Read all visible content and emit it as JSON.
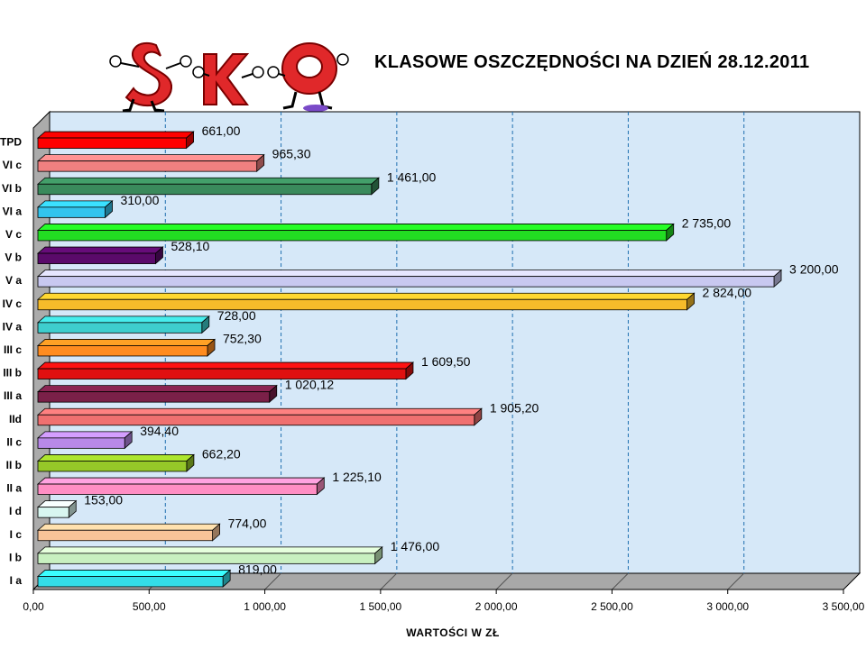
{
  "logo_text": "SKO",
  "chart_data": {
    "type": "bar",
    "orientation": "horizontal",
    "title": "KLASOWE OSZCZĘDNOŚCI NA DZIEŃ 28.12.2011",
    "xlabel": "WARTOŚCI W ZŁ",
    "ylabel": "",
    "xlim": [
      0,
      3500
    ],
    "grid": "vertical dashed",
    "legend": "none",
    "x_ticks": [
      "0,00",
      "500,00",
      "1 000,00",
      "1 500,00",
      "2 000,00",
      "2 500,00",
      "3 000,00",
      "3 500,00"
    ],
    "categories": [
      "TPD",
      "VI c",
      "VI b",
      "VI a",
      "V c",
      "V b",
      "V a",
      "IV c",
      "IV a",
      "III c",
      "III b",
      "III a",
      "IId",
      "II c",
      "II b",
      "II a",
      "I d",
      "I c",
      "I b",
      "I a"
    ],
    "values": [
      661.0,
      965.3,
      1461.0,
      310.0,
      2735.0,
      528.1,
      3200.0,
      2824.0,
      728.0,
      752.3,
      1609.5,
      1020.12,
      1905.2,
      394.4,
      662.2,
      1225.1,
      153.0,
      774.0,
      1476.0,
      819.0
    ],
    "value_labels": [
      "661,00",
      "965,30",
      "1 461,00",
      "310,00",
      "2 735,00",
      "528,10",
      "3 200,00",
      "2 824,00",
      "728,00",
      "752,30",
      "1 609,50",
      "1 020,12",
      "1 905,20",
      "394,40",
      "662,20",
      "1 225,10",
      "153,00",
      "774,00",
      "1 476,00",
      "819,00"
    ],
    "colors": [
      "#ff0000",
      "#f08080",
      "#3a8a5c",
      "#33c4ee",
      "#22dd22",
      "#5a0a6a",
      "#c8c8f0",
      "#f6bc2a",
      "#3ecece",
      "#ff8c20",
      "#e01010",
      "#7a2048",
      "#f07070",
      "#b889e8",
      "#96c828",
      "#ff8ec4",
      "#d8f6f0",
      "#f8c498",
      "#c8f0c0",
      "#33dde8"
    ]
  }
}
